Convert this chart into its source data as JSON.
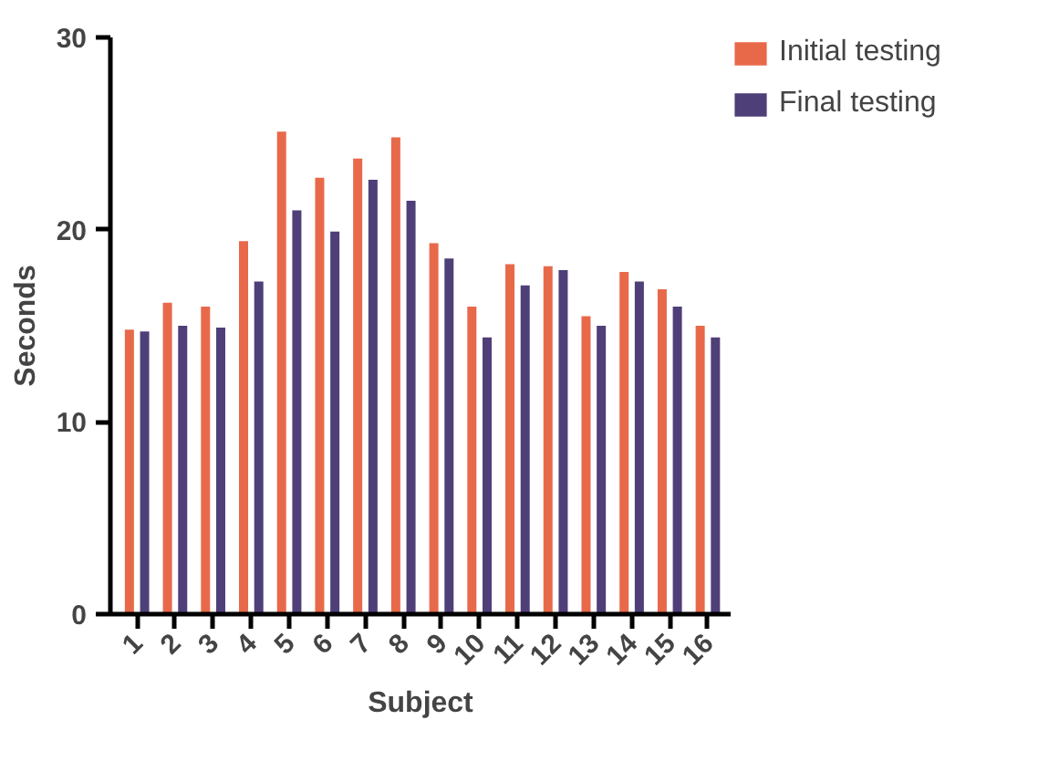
{
  "chart_data": {
    "type": "bar",
    "xlabel": "Subject",
    "ylabel": "Seconds",
    "categories": [
      "1",
      "2",
      "3",
      "4",
      "5",
      "6",
      "7",
      "8",
      "9",
      "10",
      "11",
      "12",
      "13",
      "14",
      "15",
      "16"
    ],
    "series": [
      {
        "name": "Initial testing",
        "color": "#e8694a",
        "values": [
          14.8,
          16.2,
          16.0,
          19.4,
          25.1,
          22.7,
          23.7,
          24.8,
          19.3,
          16.0,
          18.2,
          18.1,
          15.5,
          17.8,
          16.9,
          15.0
        ]
      },
      {
        "name": "Final testing",
        "color": "#4f3f78",
        "values": [
          14.7,
          15.0,
          14.9,
          17.3,
          21.0,
          19.9,
          22.6,
          21.5,
          18.5,
          14.4,
          17.1,
          17.9,
          15.0,
          17.3,
          16.0,
          14.4
        ]
      }
    ],
    "ylim": [
      0,
      30
    ],
    "yticks": [
      0,
      10,
      20,
      30
    ],
    "grid": false,
    "legend": "top right"
  }
}
